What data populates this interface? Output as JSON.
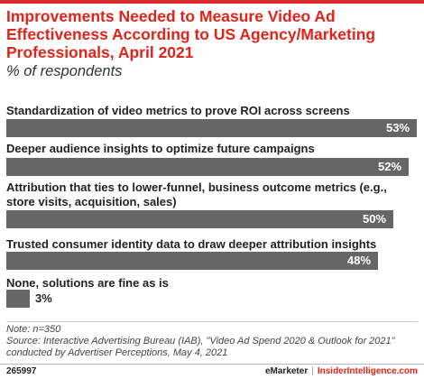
{
  "title": "Improvements Needed to Measure Video Ad Effectiveness According to US Agency/Marketing Professionals, April 2021",
  "subtitle": "% of respondents",
  "colors": {
    "accent": "#e2231a",
    "bar": "#666666",
    "text": "#222222"
  },
  "chart_data": {
    "type": "bar",
    "orientation": "horizontal",
    "title": "Improvements Needed to Measure Video Ad Effectiveness According to US Agency/Marketing Professionals, April 2021",
    "subtitle": "% of respondents",
    "categories": [
      "Standardization of video metrics to prove ROI across screens",
      "Deeper audience insights to optimize future campaigns",
      "Attribution that ties to lower-funnel, business outcome metrics (e.g., store visits, acquisition, sales)",
      "Trusted consumer identity data to draw deeper attribution insights",
      "None, solutions are fine as is"
    ],
    "values": [
      53,
      52,
      50,
      48,
      3
    ],
    "value_labels": [
      "53%",
      "52%",
      "50%",
      "48%",
      "3%"
    ],
    "unit": "%",
    "xlim": [
      0,
      53
    ],
    "grid": false,
    "legend": "none"
  },
  "notes": {
    "note": "Note: n=350",
    "source": "Source: Interactive Advertising Bureau (IAB), \"Video Ad Spend 2020 & Outlook for 2021\" conducted by Advertiser Perceptions, May 4, 2021"
  },
  "footer": {
    "chart_id": "265997",
    "brand_emarketer": "eMarketer",
    "brand_separator": "|",
    "brand_insider": "InsiderIntelligence.com"
  }
}
